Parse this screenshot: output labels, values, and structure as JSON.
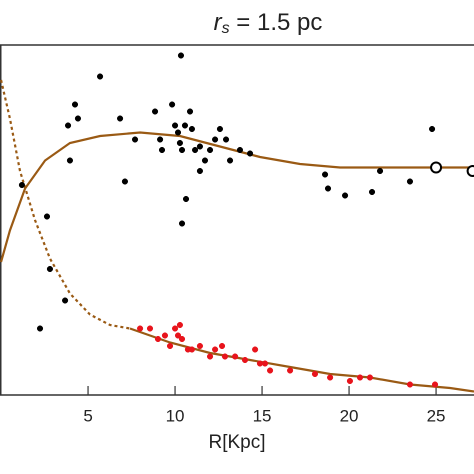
{
  "chart_data": {
    "type": "scatter",
    "title": {
      "symbol": "r",
      "subscript": "s",
      "text": " = 1.5 pc"
    },
    "x_label": "R[Kpc]",
    "xlim": [
      -0.06,
      27.18
    ],
    "ylim": [
      0,
      1
    ],
    "xticks": [
      5,
      10,
      15,
      20,
      25
    ],
    "series": [
      {
        "kind": "points",
        "color": "#000000",
        "marker": "filled",
        "x": [
          5.69,
          10.34,
          4.25,
          3.85,
          4.42,
          6.84,
          7.7,
          8.85,
          9.14,
          9.25,
          9.83,
          10.0,
          10.17,
          10.28,
          10.4,
          10.57,
          10.86,
          10.97,
          11.15,
          11.43,
          11.72,
          12.01,
          12.3,
          12.58,
          12.93,
          13.73,
          10.4,
          10.63,
          7.12,
          1.2,
          2.64,
          2.81,
          3.68,
          2.24,
          18.62,
          18.79,
          19.77,
          21.32,
          23.5,
          24.77,
          21.78,
          11.43,
          3.96,
          14.31,
          13.16
        ],
        "values": [
          0.91,
          0.97,
          0.83,
          0.77,
          0.79,
          0.79,
          0.73,
          0.81,
          0.73,
          0.7,
          0.83,
          0.77,
          0.75,
          0.72,
          0.7,
          0.77,
          0.81,
          0.76,
          0.7,
          0.71,
          0.67,
          0.7,
          0.73,
          0.76,
          0.73,
          0.7,
          0.49,
          0.56,
          0.61,
          0.6,
          0.51,
          0.36,
          0.27,
          0.19,
          0.63,
          0.59,
          0.57,
          0.58,
          0.61,
          0.76,
          0.64,
          0.64,
          0.67,
          0.69,
          0.67
        ]
      },
      {
        "kind": "points",
        "color": "#e8141c",
        "marker": "filled",
        "x": [
          7.99,
          8.56,
          9.02,
          9.42,
          9.71,
          10.0,
          10.17,
          10.4,
          10.74,
          10.97,
          10.28,
          11.43,
          12.01,
          12.3,
          12.87,
          12.7,
          13.45,
          14.02,
          14.6,
          14.88,
          15.46,
          15.17,
          16.61,
          18.04,
          18.91,
          20.05,
          20.63,
          21.2,
          23.5,
          24.94
        ],
        "values": [
          0.19,
          0.19,
          0.16,
          0.17,
          0.14,
          0.19,
          0.17,
          0.16,
          0.13,
          0.13,
          0.2,
          0.14,
          0.11,
          0.13,
          0.11,
          0.14,
          0.11,
          0.1,
          0.13,
          0.09,
          0.07,
          0.09,
          0.07,
          0.06,
          0.05,
          0.04,
          0.05,
          0.05,
          0.03,
          0.03
        ]
      },
      {
        "kind": "line",
        "color": "#9a5a14",
        "dash": false,
        "x": [
          0,
          0.51,
          1.38,
          2.53,
          3.96,
          5.69,
          7.99,
          10.28,
          12.58,
          14.88,
          17.18,
          19.48,
          21.78,
          24.08,
          27.18
        ],
        "values": [
          0.38,
          0.47,
          0.59,
          0.67,
          0.72,
          0.74,
          0.75,
          0.74,
          0.71,
          0.68,
          0.66,
          0.65,
          0.65,
          0.65,
          0.65
        ]
      },
      {
        "kind": "line",
        "color": "#9a5a14",
        "dash": true,
        "x": [
          0,
          0.51,
          1.09,
          1.95,
          2.81,
          3.96,
          5.11,
          6.26,
          7.41
        ],
        "values": [
          0.9,
          0.79,
          0.64,
          0.5,
          0.39,
          0.29,
          0.23,
          0.2,
          0.19
        ]
      },
      {
        "kind": "line",
        "color": "#9a5a14",
        "dash": false,
        "x": [
          7.41,
          9.71,
          12.01,
          14.31,
          16.61,
          18.91,
          21.21,
          23.51,
          25.8,
          27.18
        ],
        "values": [
          0.19,
          0.15,
          0.12,
          0.1,
          0.08,
          0.06,
          0.05,
          0.03,
          0.02,
          0.01
        ]
      },
      {
        "kind": "points",
        "color": "#000000",
        "marker": "open",
        "x": [
          25.0,
          27.1
        ],
        "values": [
          0.65,
          0.64
        ]
      }
    ]
  }
}
